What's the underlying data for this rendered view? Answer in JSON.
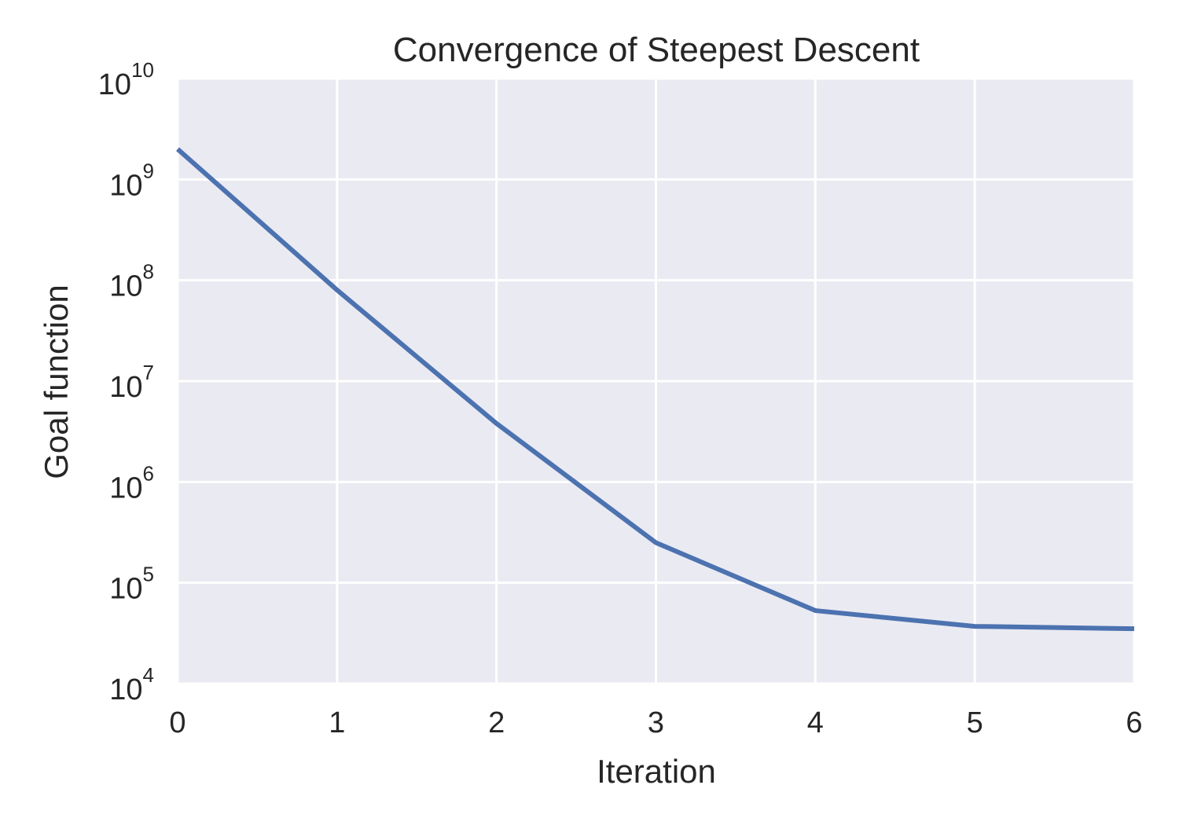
{
  "chart_data": {
    "type": "line",
    "title": "Convergence of Steepest Descent",
    "xlabel": "Iteration",
    "ylabel": "Goal function",
    "yscale": "log",
    "xlim": [
      0,
      6
    ],
    "ylim": [
      10000,
      10000000000
    ],
    "x": [
      0,
      1,
      2,
      3,
      4,
      5,
      6
    ],
    "xticks": [
      "0",
      "1",
      "2",
      "3",
      "4",
      "5",
      "6"
    ],
    "yticks": [
      {
        "base": "10",
        "exp": "4"
      },
      {
        "base": "10",
        "exp": "5"
      },
      {
        "base": "10",
        "exp": "6"
      },
      {
        "base": "10",
        "exp": "7"
      },
      {
        "base": "10",
        "exp": "8"
      },
      {
        "base": "10",
        "exp": "9"
      },
      {
        "base": "10",
        "exp": "10"
      }
    ],
    "series": [
      {
        "values": [
          2000000000,
          80000000,
          3800000,
          250000,
          53000,
          37000,
          35000
        ],
        "color": "#4c72b0"
      }
    ],
    "grid": true,
    "background": "#eaeaf2",
    "grid_color": "#ffffff"
  }
}
